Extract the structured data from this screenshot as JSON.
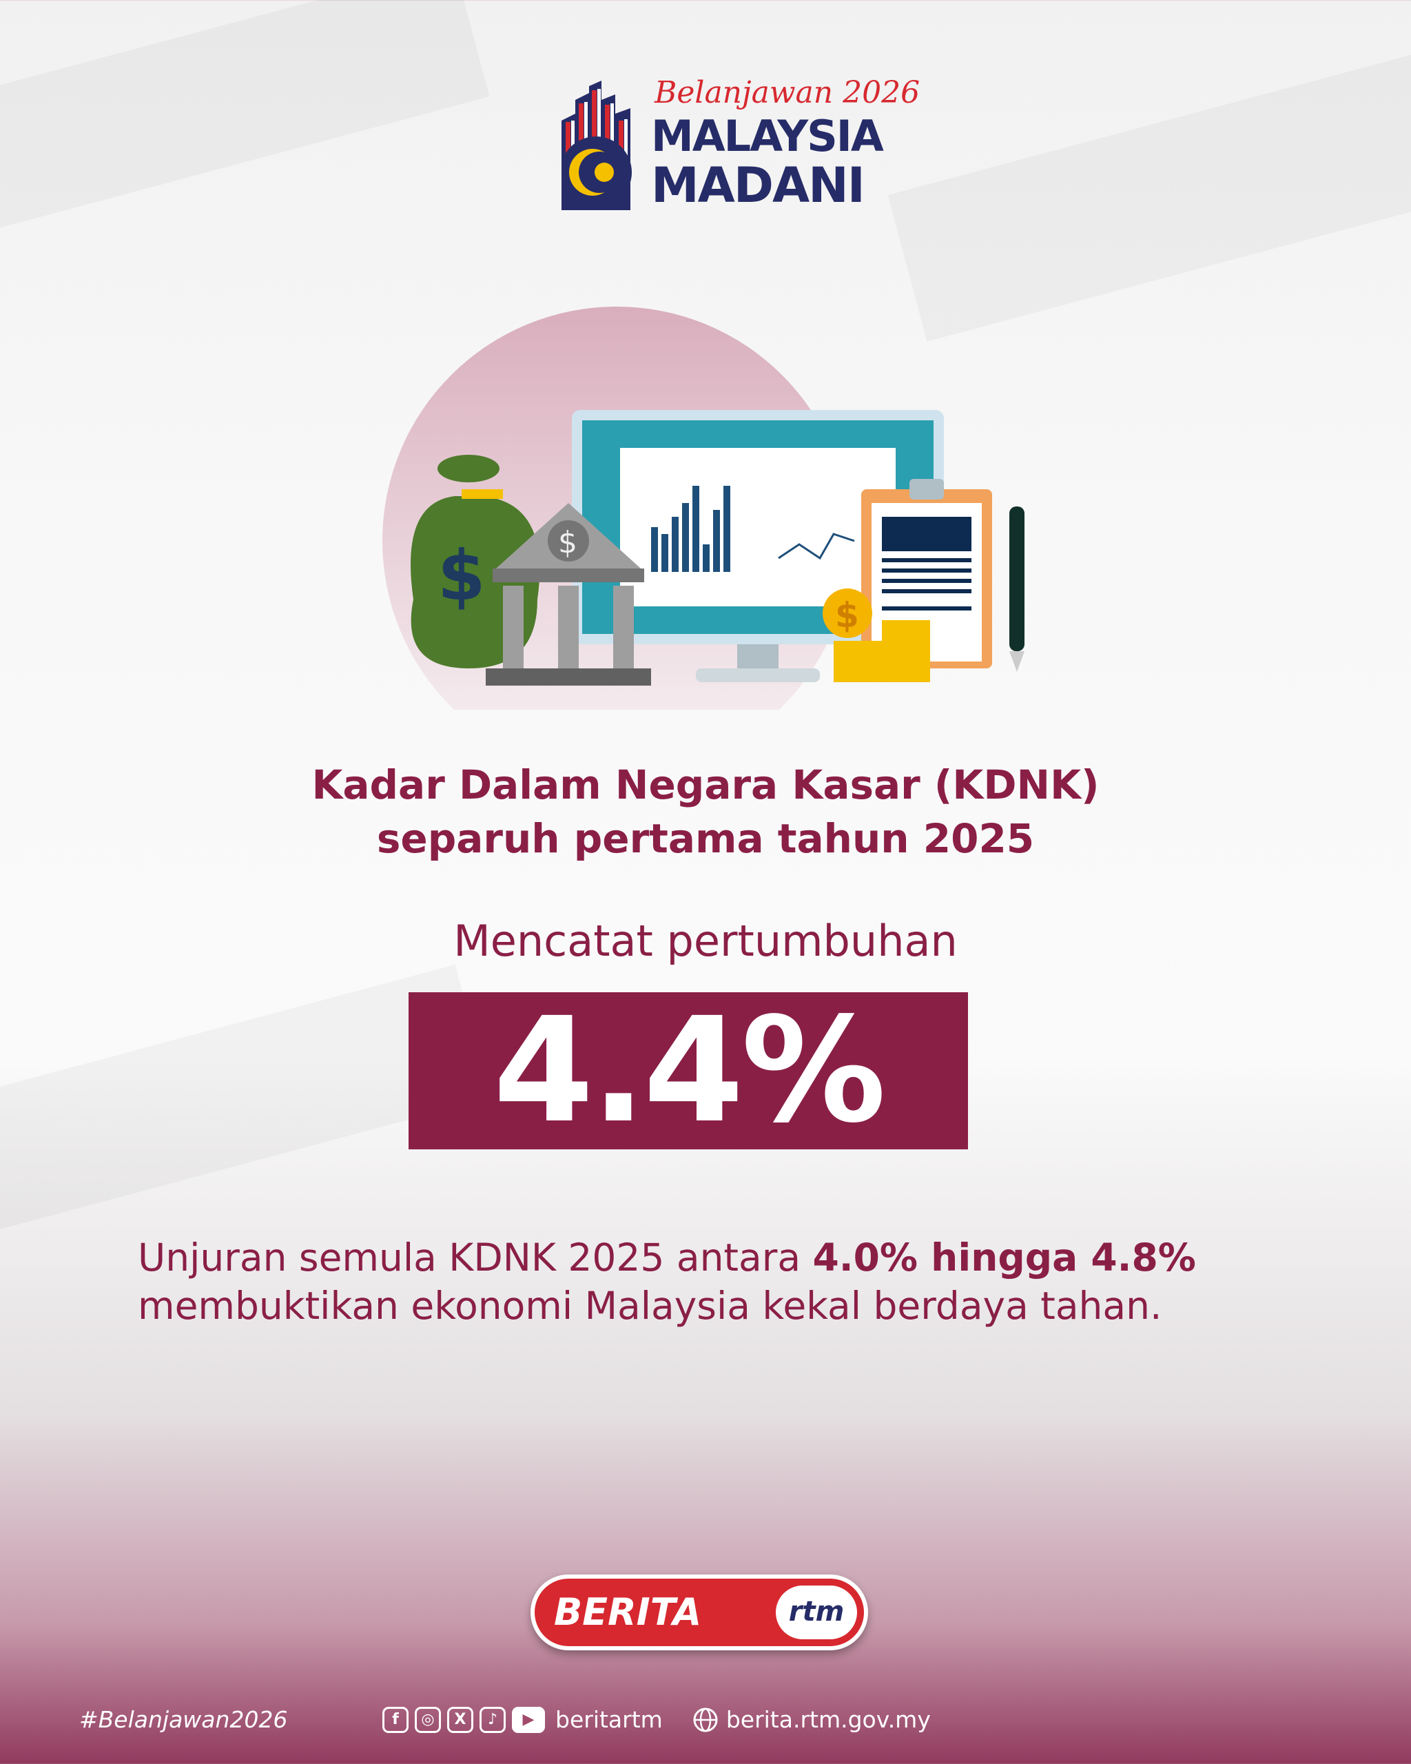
{
  "logo": {
    "script": "Belanjawan 2026",
    "line1": "MALAYSIA",
    "line2": "MADANI"
  },
  "headline": {
    "line1": "Kadar Dalam Negara Kasar (KDNK)",
    "line2": "separuh pertama tahun 2025"
  },
  "subheading": "Mencatat pertumbuhan",
  "highlight_value": "4.4%",
  "paragraph": {
    "pre": "Unjuran semula KDNK 2025 antara ",
    "bold": "4.0% hingga 4.8%",
    "line2": "membuktikan ekonomi Malaysia kekal berdaya tahan."
  },
  "brand": {
    "berita": "BERITA",
    "rtm": "rtm"
  },
  "footer": {
    "hashtag": "#Belanjawan2026",
    "social_handle": "beritartm",
    "website": "berita.rtm.gov.my",
    "icons": [
      "facebook-icon",
      "instagram-icon",
      "x-icon",
      "tiktok-icon",
      "youtube-icon",
      "globe-icon"
    ]
  },
  "colors": {
    "primary": "#8a1f46",
    "navy": "#262c68",
    "red": "#d7282f",
    "gold": "#f5c000"
  }
}
